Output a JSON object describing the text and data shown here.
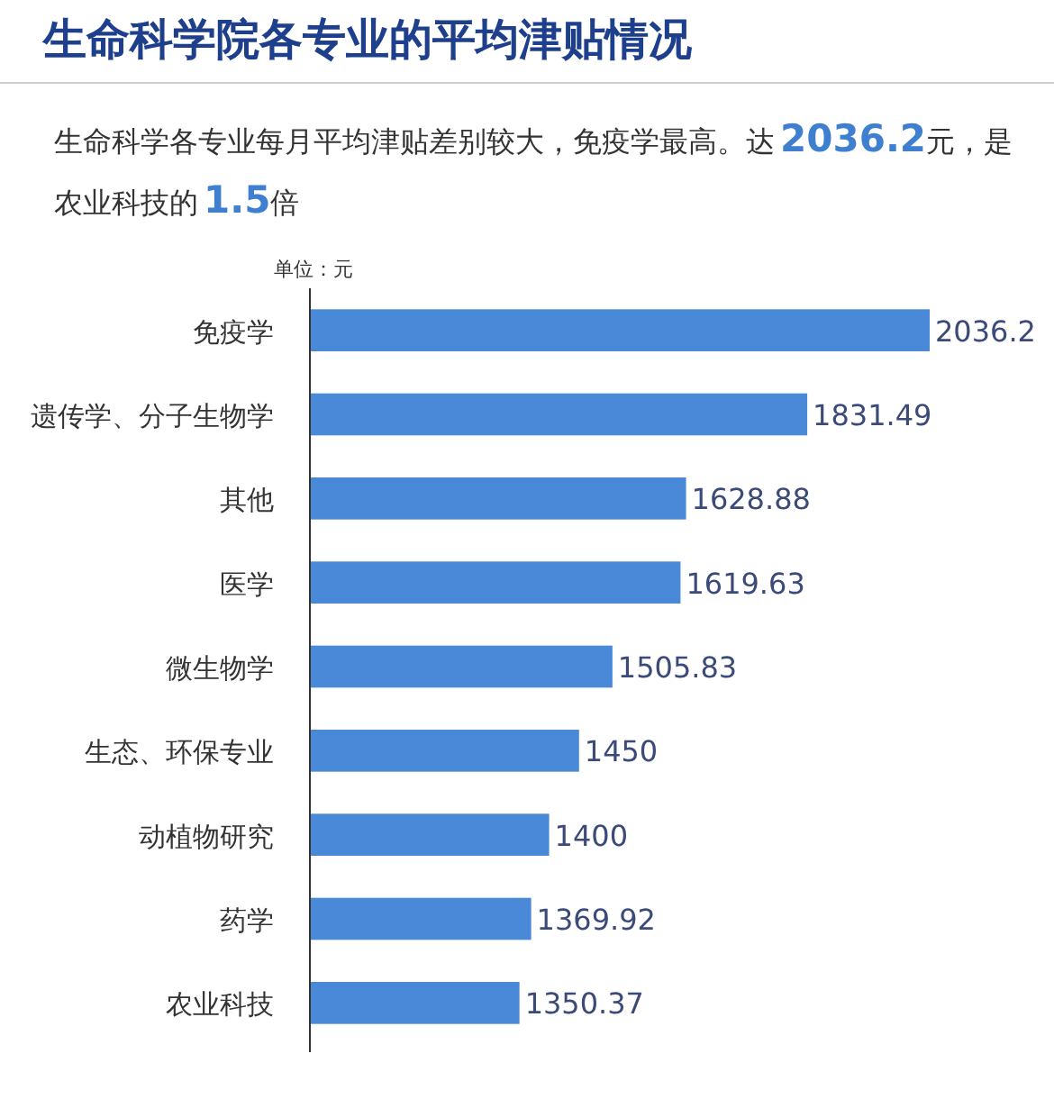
{
  "chart_data": {
    "type": "bar",
    "orientation": "horizontal",
    "title": "生命科学院各专业的平均津贴情况",
    "subtitle": "生命科学各专业每月平均津贴差别较大，免疫学最高。达2036.2元，是农业科技的1.5倍",
    "categories": [
      "免疫学",
      "遗传学、分子生物学",
      "其他",
      "医学",
      "微生物学",
      "生态、环保专业",
      "动植物研究",
      "药学",
      "农业科技"
    ],
    "values": [
      2036.2,
      1831.49,
      1628.88,
      1619.63,
      1505.83,
      1450,
      1400,
      1369.92,
      1350.37
    ],
    "color": "#4a88d8",
    "xlim": [
      1000,
      2036.2
    ],
    "tick_labels": "y",
    "data_labels": true,
    "annotations": [
      "单位：元"
    ]
  }
}
